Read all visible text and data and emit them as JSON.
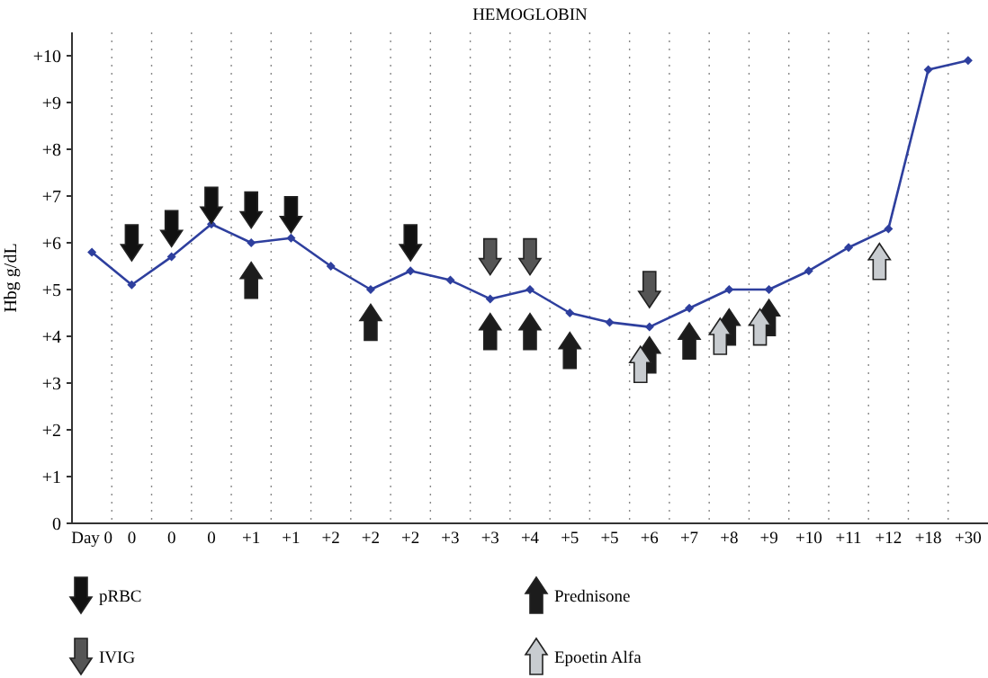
{
  "chart_data": {
    "type": "line",
    "title": "HEMOGLOBIN",
    "ylabel": "Hbg g/dL",
    "categories": [
      "Day 0",
      "0",
      "0",
      "0",
      "+1",
      "+1",
      "+2",
      "+2",
      "+2",
      "+3",
      "+3",
      "+4",
      "+5",
      "+5",
      "+6",
      "+7",
      "+8",
      "+9",
      "+10",
      "+11",
      "+12",
      "+18",
      "+30"
    ],
    "ylim": [
      0,
      10.5
    ],
    "yticks": [
      0,
      {
        "value": 1,
        "label": "+1"
      },
      {
        "value": 2,
        "label": "+2"
      },
      {
        "value": 3,
        "label": "+3"
      },
      {
        "value": 4,
        "label": "+4"
      },
      {
        "value": 5,
        "label": "+5"
      },
      {
        "value": 6,
        "label": "+6"
      },
      {
        "value": 7,
        "label": "+7"
      },
      {
        "value": 8,
        "label": "+8"
      },
      {
        "value": 9,
        "label": "+9"
      },
      {
        "value": 10,
        "label": "+10"
      }
    ],
    "grid": "x",
    "legend": "bottom",
    "series": [
      {
        "color": "#2e3f9e",
        "marker": "diamond",
        "values": [
          5.8,
          5.1,
          5.7,
          6.4,
          6.0,
          6.1,
          5.5,
          5.0,
          5.4,
          5.2,
          4.8,
          5.0,
          4.5,
          4.3,
          4.2,
          4.6,
          5.0,
          5.0,
          5.4,
          5.9,
          6.3,
          9.7,
          9.9
        ]
      },
      {
        "type": "scatter",
        "name": "pRBC",
        "color": "#111111",
        "values": [
          null,
          6.0,
          6.3,
          6.8,
          6.7,
          6.6,
          null,
          null,
          6.0,
          null,
          null,
          null,
          null,
          null,
          null,
          null,
          null,
          null,
          null,
          null,
          null,
          null,
          null
        ]
      },
      {
        "type": "scatter",
        "name": "IVIG",
        "color": "#555555",
        "values": [
          null,
          null,
          null,
          null,
          null,
          null,
          null,
          null,
          null,
          null,
          5.7,
          5.7,
          null,
          null,
          5.0,
          null,
          null,
          null,
          null,
          null,
          null,
          null,
          null
        ]
      },
      {
        "type": "scatter",
        "name": "Prednisone",
        "color": "#1c1c1c",
        "values": [
          null,
          null,
          null,
          null,
          5.2,
          null,
          null,
          4.3,
          null,
          null,
          4.1,
          4.1,
          3.7,
          null,
          3.6,
          3.9,
          4.2,
          4.4,
          null,
          null,
          null,
          null,
          null
        ]
      },
      {
        "type": "scatter",
        "name": "Epoetin Alfa",
        "color": "#c8ccd0",
        "values": [
          null,
          null,
          null,
          null,
          null,
          null,
          null,
          null,
          null,
          null,
          null,
          null,
          null,
          null,
          3.4,
          null,
          4.0,
          4.2,
          null,
          null,
          5.6,
          null,
          null
        ]
      }
    ]
  }
}
